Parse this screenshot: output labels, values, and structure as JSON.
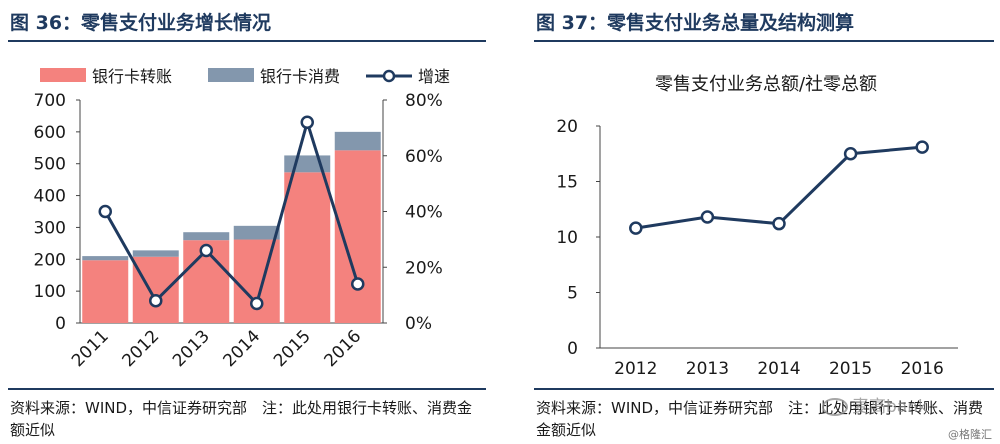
{
  "left": {
    "title": "图 36：零售支付业务增长情况",
    "footnote": "资料来源：WIND，中信证券研究部　注：此处用银行卡转账、消费金额近似"
  },
  "right": {
    "title": "图 37：零售支付业务总量及结构测算",
    "footnote": "资料来源：WIND，中信证券研究部　注：此处用银行卡转账、消费金额近似"
  },
  "watermark": "麦高bank",
  "credit": "@格隆汇",
  "colors": {
    "transfer": "#f4827e",
    "consume": "#8397ad",
    "line": "#1f3a5f",
    "title": "#1f3a5f"
  },
  "chart_data": [
    {
      "type": "bar",
      "stacked": true,
      "title": "",
      "categories": [
        "2011",
        "2012",
        "2013",
        "2014",
        "2015",
        "2016"
      ],
      "series": [
        {
          "name": "银行卡转账",
          "kind": "bar",
          "axis": "left",
          "values": [
            197,
            208,
            260,
            262,
            473,
            542
          ]
        },
        {
          "name": "银行卡消费",
          "kind": "bar",
          "axis": "left",
          "values": [
            13,
            20,
            25,
            43,
            53,
            58
          ]
        },
        {
          "name": "增速",
          "kind": "line",
          "axis": "right",
          "values": [
            40,
            8,
            26,
            7,
            72,
            14
          ]
        }
      ],
      "ylim": [
        0,
        700
      ],
      "yticks": [
        "0",
        "100",
        "200",
        "300",
        "400",
        "500",
        "600",
        "700"
      ],
      "y2lim": [
        0,
        80
      ],
      "y2ticks": [
        "0%",
        "20%",
        "40%",
        "60%",
        "80%"
      ],
      "legend": "top",
      "grid": false
    },
    {
      "type": "line",
      "title": "零售支付业务总额/社零总额",
      "categories": [
        "2012",
        "2013",
        "2014",
        "2015",
        "2016"
      ],
      "series": [
        {
          "values": [
            10.8,
            11.8,
            11.2,
            17.5,
            18.1
          ]
        }
      ],
      "ylim": [
        0,
        20
      ],
      "yticks": [
        "0",
        "5",
        "10",
        "15",
        "20"
      ],
      "legend": "none",
      "grid": false
    }
  ]
}
